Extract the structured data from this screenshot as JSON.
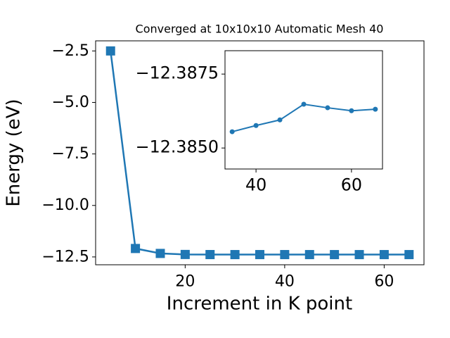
{
  "chart_data": [
    {
      "type": "line",
      "title": "Converged at 10x10x10 Automatic Mesh 40",
      "x_label": "Increment in K point",
      "y_label": "Energy (eV)",
      "x": [
        5,
        10,
        15,
        20,
        25,
        30,
        35,
        40,
        45,
        50,
        55,
        60,
        65
      ],
      "series": [
        {
          "name": "Energy",
          "color": "#1f77b4",
          "marker": "square",
          "values": [
            -2.5,
            -12.09,
            -12.33,
            -12.38,
            -12.385,
            -12.386,
            -12.38555,
            -12.38576,
            -12.38595,
            -12.38648,
            -12.38636,
            -12.38626,
            -12.38631
          ]
        }
      ],
      "xlim": [
        2,
        68
      ],
      "xticks": [
        20,
        40,
        60
      ],
      "ylim": [
        -12.88,
        -2.01
      ],
      "yticks": [
        {
          "value": -2.5,
          "label": "−2.5"
        },
        {
          "value": -5.0,
          "label": "−5.0"
        },
        {
          "value": -7.5,
          "label": "−7.5"
        },
        {
          "value": -10.0,
          "label": "−10.0"
        },
        {
          "value": -12.5,
          "label": "−12.5"
        }
      ]
    },
    {
      "type": "line",
      "x": [
        35,
        40,
        45,
        50,
        55,
        60,
        65
      ],
      "series": [
        {
          "name": "Energy",
          "color": "#1f77b4",
          "marker": "circle",
          "values": [
            -12.38555,
            -12.38576,
            -12.38595,
            -12.38648,
            -12.38636,
            -12.38626,
            -12.38631
          ]
        }
      ],
      "xlim": [
        33.5,
        66.5
      ],
      "xticks": [
        40,
        60
      ],
      "ylim": [
        -12.38429,
        -12.38829
      ],
      "yticks": [
        {
          "value": -12.3875,
          "label": "−12.3875"
        },
        {
          "value": -12.385,
          "label": "−12.3850"
        }
      ]
    }
  ]
}
